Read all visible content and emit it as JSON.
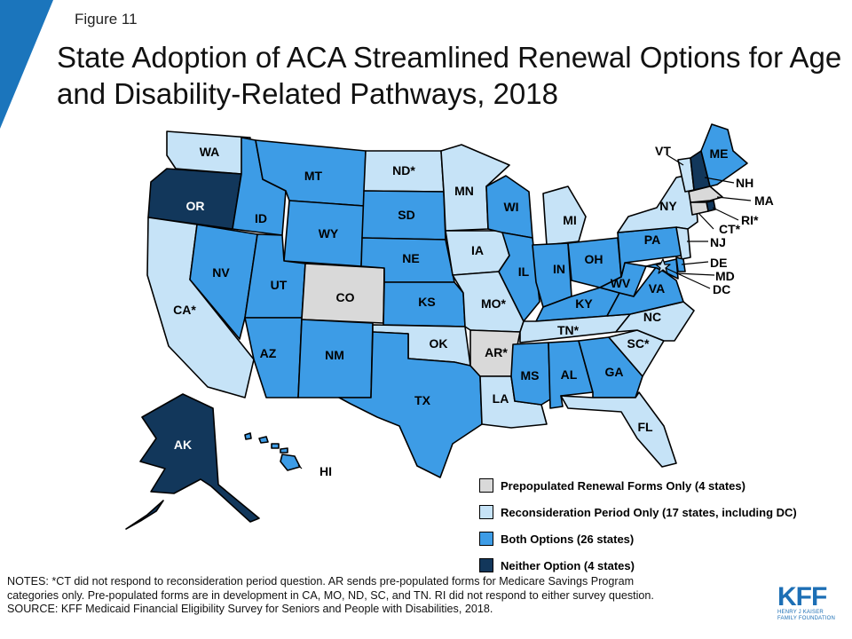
{
  "figure_label": "Figure 11",
  "title": "State Adoption of ACA Streamlined Renewal Options for Age and Disability-Related Pathways, 2018",
  "colors": {
    "corner_accent": "#1b75bc",
    "prepopulated": "#d9d9d9",
    "reconsideration": "#c6e3f7",
    "both": "#3d9ce6",
    "neither": "#12375b",
    "border": "#000000"
  },
  "categories": {
    "prepopulated": "Prepopulated Renewal Forms Only (4 states)",
    "reconsideration": "Reconsideration Period Only (17 states, including DC)",
    "both": "Both Options (26 states)",
    "neither": "Neither Option (4 states)"
  },
  "legend": [
    {
      "key": "prepopulated",
      "label": "Prepopulated Renewal Forms Only (4 states)"
    },
    {
      "key": "reconsideration",
      "label": "Reconsideration Period Only (17 states, including DC)"
    },
    {
      "key": "both",
      "label": "Both Options (26 states)"
    },
    {
      "key": "neither",
      "label": "Neither Option (4 states)"
    }
  ],
  "states": [
    {
      "label": "WA",
      "cat": "reconsideration"
    },
    {
      "label": "OR",
      "cat": "neither"
    },
    {
      "label": "CA*",
      "cat": "reconsideration"
    },
    {
      "label": "ID",
      "cat": "both"
    },
    {
      "label": "NV",
      "cat": "both"
    },
    {
      "label": "MT",
      "cat": "both"
    },
    {
      "label": "WY",
      "cat": "both"
    },
    {
      "label": "UT",
      "cat": "both"
    },
    {
      "label": "AZ",
      "cat": "both"
    },
    {
      "label": "CO",
      "cat": "prepopulated"
    },
    {
      "label": "NM",
      "cat": "both"
    },
    {
      "label": "ND*",
      "cat": "reconsideration"
    },
    {
      "label": "SD",
      "cat": "both"
    },
    {
      "label": "NE",
      "cat": "both"
    },
    {
      "label": "KS",
      "cat": "both"
    },
    {
      "label": "OK",
      "cat": "reconsideration"
    },
    {
      "label": "TX",
      "cat": "both"
    },
    {
      "label": "MN",
      "cat": "reconsideration"
    },
    {
      "label": "IA",
      "cat": "reconsideration"
    },
    {
      "label": "MO*",
      "cat": "reconsideration"
    },
    {
      "label": "AR*",
      "cat": "prepopulated"
    },
    {
      "label": "LA",
      "cat": "reconsideration"
    },
    {
      "label": "WI",
      "cat": "both"
    },
    {
      "label": "IL",
      "cat": "both"
    },
    {
      "label": "MI",
      "cat": "reconsideration"
    },
    {
      "label": "IN",
      "cat": "both"
    },
    {
      "label": "OH",
      "cat": "both"
    },
    {
      "label": "KY",
      "cat": "both"
    },
    {
      "label": "TN*",
      "cat": "reconsideration"
    },
    {
      "label": "MS",
      "cat": "both"
    },
    {
      "label": "AL",
      "cat": "both"
    },
    {
      "label": "GA",
      "cat": "both"
    },
    {
      "label": "FL",
      "cat": "reconsideration"
    },
    {
      "label": "SC*",
      "cat": "reconsideration"
    },
    {
      "label": "NC",
      "cat": "reconsideration"
    },
    {
      "label": "VA",
      "cat": "both"
    },
    {
      "label": "WV",
      "cat": "both"
    },
    {
      "label": "PA",
      "cat": "both"
    },
    {
      "label": "NY",
      "cat": "reconsideration"
    },
    {
      "label": "NJ",
      "cat": "reconsideration"
    },
    {
      "label": "DE",
      "cat": "both"
    },
    {
      "label": "MD",
      "cat": "both"
    },
    {
      "label": "DC",
      "cat": "reconsideration"
    },
    {
      "label": "VT",
      "cat": "reconsideration"
    },
    {
      "label": "NH",
      "cat": "neither"
    },
    {
      "label": "ME",
      "cat": "both"
    },
    {
      "label": "MA",
      "cat": "prepopulated"
    },
    {
      "label": "RI*",
      "cat": "neither"
    },
    {
      "label": "CT*",
      "cat": "prepopulated"
    },
    {
      "label": "AK",
      "cat": "neither"
    },
    {
      "label": "HI",
      "cat": "both"
    }
  ],
  "notes": {
    "line1": "NOTES: *CT did not respond to reconsideration period question. AR sends pre-populated forms for Medicare Savings Program",
    "line2": "categories only. Pre-populated forms are in development in CA, MO, ND, SC, and TN. RI did not respond to either survey question.",
    "source": "SOURCE: KFF Medicaid Financial Eligibility Survey for Seniors and People with Disabilities, 2018."
  },
  "logo": {
    "main": "KFF",
    "sub_line1": "HENRY J KAISER",
    "sub_line2": "FAMILY FOUNDATION"
  }
}
